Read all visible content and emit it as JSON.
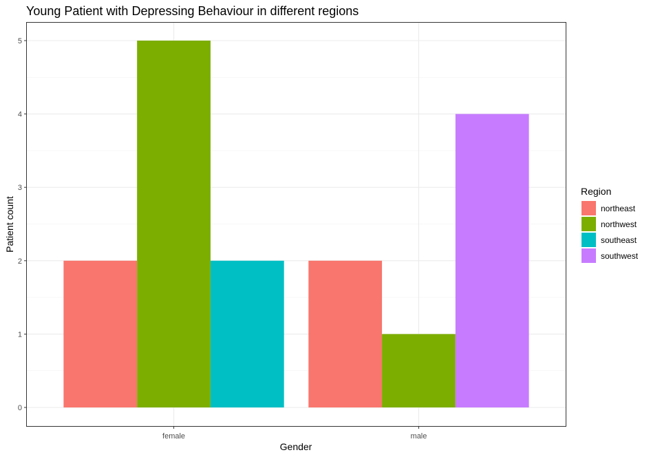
{
  "chart_data": {
    "type": "bar",
    "title": "Young Patient with Depressing Behaviour  in different regions",
    "xlabel": "Gender",
    "ylabel": "Patient count",
    "categories": [
      "female",
      "male"
    ],
    "ylim": [
      0,
      5.5
    ],
    "yticks": [
      0,
      1,
      2,
      3,
      4,
      5
    ],
    "grid": true,
    "legend": {
      "title": "Region",
      "placement": "right"
    },
    "series": [
      {
        "name": "northeast",
        "color": "#F8766D",
        "values": [
          2,
          2
        ]
      },
      {
        "name": "northwest",
        "color": "#7CAE00",
        "values": [
          5,
          1
        ]
      },
      {
        "name": "southeast",
        "color": "#00BFC4",
        "values": [
          2,
          null
        ]
      },
      {
        "name": "southwest",
        "color": "#C77CFF",
        "values": [
          null,
          4
        ]
      }
    ]
  }
}
